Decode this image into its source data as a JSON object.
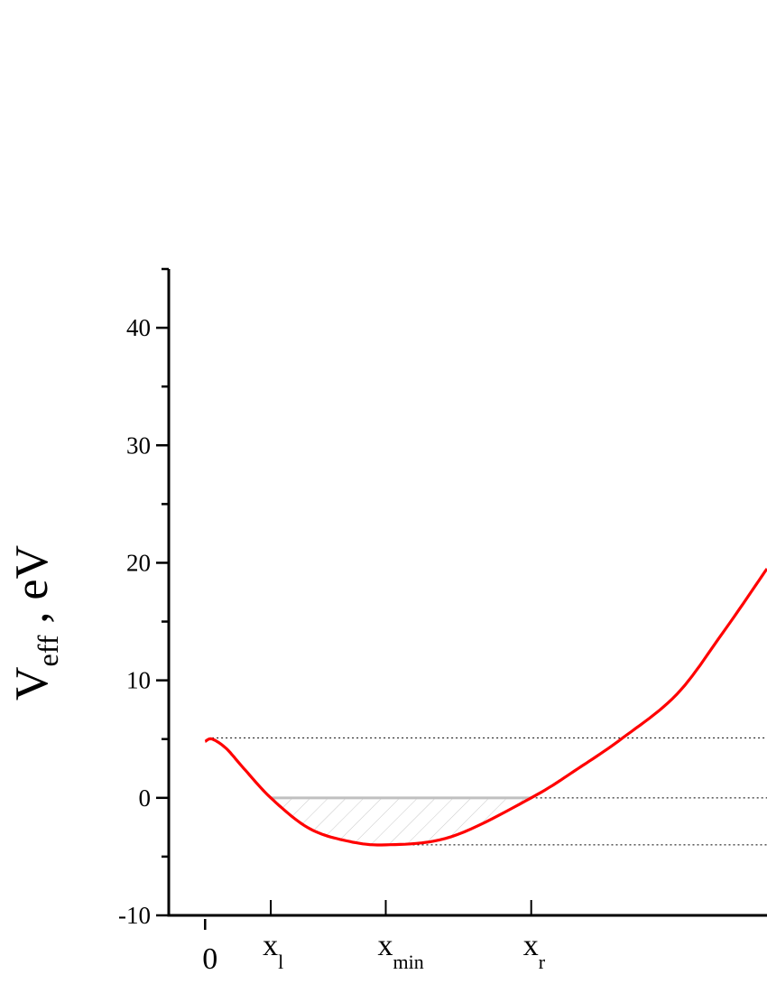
{
  "chart_data": {
    "type": "line",
    "title": "",
    "ylabel": {
      "main": "V",
      "sub": "eff",
      "unit": " , eV"
    },
    "xlabel": "",
    "ylim": [
      -10,
      45
    ],
    "xlim": [
      -0.31,
      4.79
    ],
    "yticks_major": [
      -10,
      0,
      10,
      20,
      30,
      40
    ],
    "ytick_labels": [
      "-10",
      "0",
      "10",
      "20",
      "30",
      "40"
    ],
    "yticks_minor": [
      -5,
      5,
      15,
      25,
      35,
      45
    ],
    "xticks": [
      {
        "value": 0,
        "label": "0",
        "sub": ""
      },
      {
        "value": 0.56,
        "label": "x",
        "sub": "l"
      },
      {
        "value": 1.54,
        "label": "x",
        "sub": "min"
      },
      {
        "value": 2.78,
        "label": "x",
        "sub": "r"
      }
    ],
    "grid": false,
    "series": [
      {
        "color": "#ff0000",
        "x": [
          0,
          0.06,
          0.18,
          0.33,
          0.56,
          0.87,
          1.18,
          1.54,
          2.1,
          2.78,
          3.18,
          3.56,
          4.02,
          4.41,
          4.79
        ],
        "y": [
          4.8,
          5.0,
          4.2,
          2.5,
          0,
          -2.5,
          -3.6,
          -4.0,
          -3.3,
          0,
          2.5,
          5.1,
          8.8,
          14.0,
          19.5
        ]
      }
    ],
    "reference_lines": [
      {
        "y": 5.1,
        "x_from": 0.06,
        "style": "dotted"
      },
      {
        "y": 0,
        "x_from": 2.78,
        "style": "dotted"
      },
      {
        "y": -4.0,
        "x_from": 1.54,
        "style": "dotted"
      }
    ],
    "energy_level": {
      "y": 0,
      "x_from": 0.56,
      "x_to": 2.78,
      "color": "#c0c0c0",
      "hatched": true
    }
  }
}
